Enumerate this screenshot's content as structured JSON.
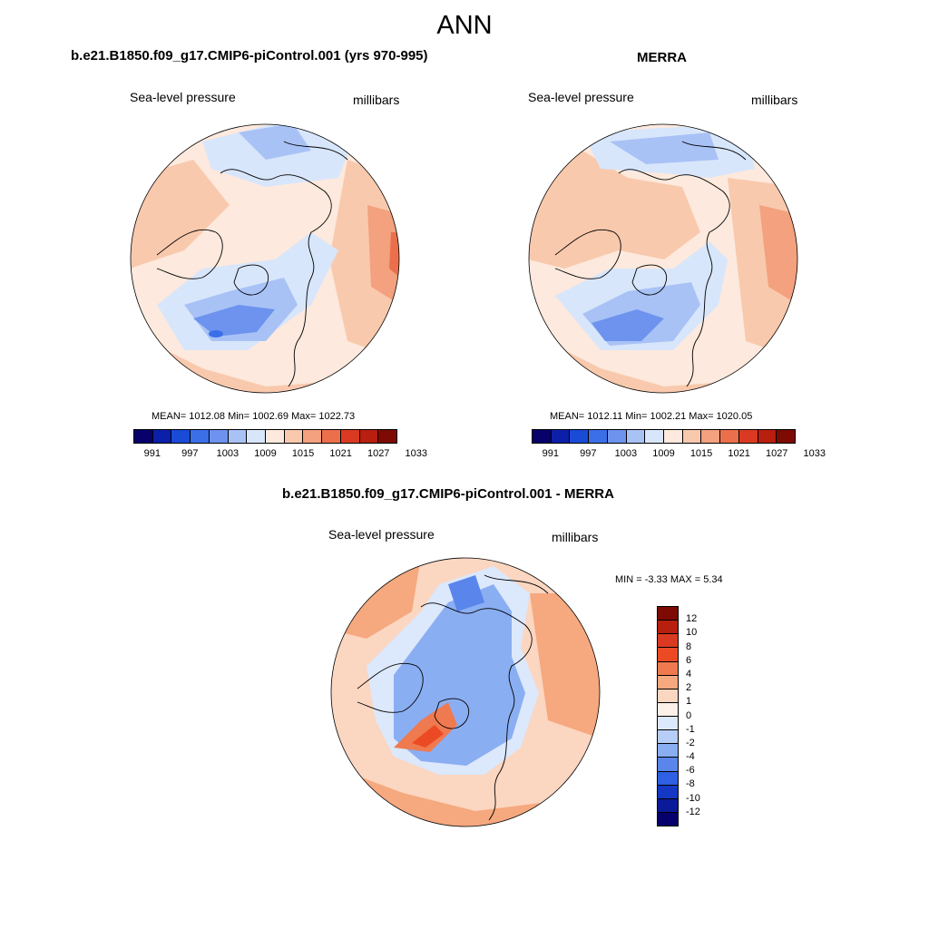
{
  "title": "ANN",
  "panels": [
    {
      "id": "model",
      "title": "b.e21.B1850.f09_g17.CMIP6-piControl.001 (yrs 970-995)",
      "variable": "Sea-level pressure",
      "units": "millibars",
      "stats": "MEAN= 1012.08  Min= 1002.69  Max= 1022.73"
    },
    {
      "id": "obs",
      "title": "MERRA",
      "variable": "Sea-level pressure",
      "units": "millibars",
      "stats": "MEAN= 1012.11  Min= 1002.21  Max= 1020.05"
    },
    {
      "id": "diff",
      "title": "b.e21.B1850.f09_g17.CMIP6-piControl.001 - MERRA",
      "variable": "Sea-level pressure",
      "units": "millibars",
      "stats": "MIN =  -3.33 MAX =   5.34"
    }
  ],
  "colorbar_abs": {
    "labels": [
      "991",
      "997",
      "1003",
      "1009",
      "1015",
      "1021",
      "1027",
      "1033"
    ],
    "colors": [
      "#08006b",
      "#0c1fa8",
      "#1a4bd6",
      "#3a6fe8",
      "#6d93ee",
      "#a9c2f6",
      "#d8e6fb",
      "#fde9dd",
      "#f9c9ad",
      "#f3a17e",
      "#ec6f4c",
      "#db3a22",
      "#b81f0e",
      "#7d0a03"
    ]
  },
  "colorbar_diff": {
    "labels": [
      "12",
      "10",
      "8",
      "6",
      "4",
      "2",
      "1",
      "0",
      "-1",
      "-2",
      "-4",
      "-6",
      "-8",
      "-10",
      "-12"
    ],
    "colors": [
      "#7d0a03",
      "#b81f0e",
      "#db3a22",
      "#ec4a24",
      "#f07a50",
      "#f6a87f",
      "#fbd6c1",
      "#fdf0e8",
      "#dce8fb",
      "#b6cdf8",
      "#8aaef2",
      "#5a86ec",
      "#2f5fe3",
      "#1438c4",
      "#0a1a99",
      "#05006b"
    ]
  }
}
